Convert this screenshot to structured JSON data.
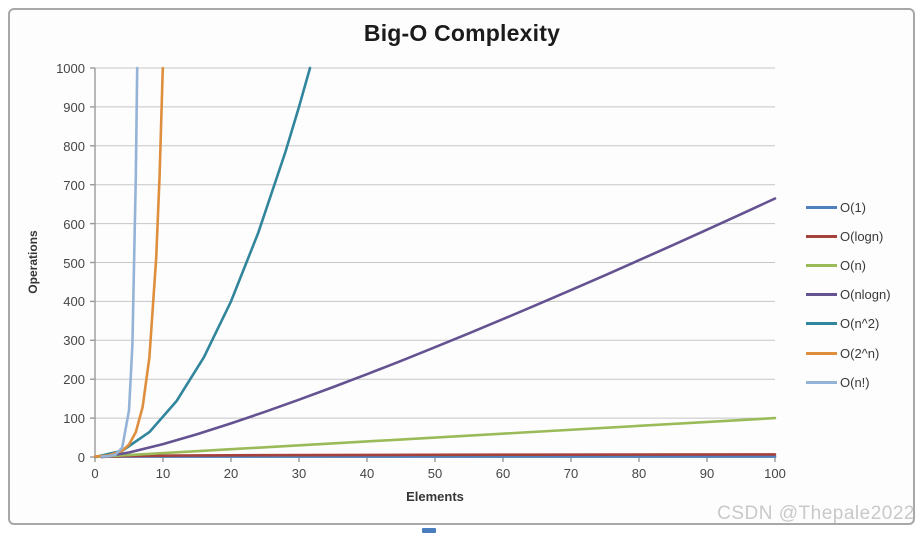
{
  "page": {
    "watermark": "CSDN @Thepale2022"
  },
  "colors": {
    "gridline": "#c6c6c6",
    "axis": "#9a9a9a",
    "tick": "#9a9a9a",
    "frame_border": "#a8a8a8",
    "title_text": "#1b1b1b",
    "watermark_text": "#c9c9c9",
    "bottom_artifact": "#4b7ebe"
  },
  "chart_data": {
    "type": "line",
    "title": "Big-O Complexity",
    "xlabel": "Elements",
    "ylabel": "Operations",
    "xlim": [
      0,
      100
    ],
    "ylim": [
      0,
      1000
    ],
    "x_ticks": [
      0,
      10,
      20,
      30,
      40,
      50,
      60,
      70,
      80,
      90,
      100
    ],
    "y_ticks": [
      0,
      100,
      200,
      300,
      400,
      500,
      600,
      700,
      800,
      900,
      1000
    ],
    "grid": "horizontal-only",
    "legend_position": "right",
    "series": [
      {
        "name": "O(1)",
        "color": "#4f81bd",
        "points": [
          [
            0,
            1
          ],
          [
            100,
            1
          ]
        ]
      },
      {
        "name": "O(logn)",
        "color": "#a6413c",
        "points": [
          [
            1,
            0
          ],
          [
            2,
            1
          ],
          [
            3,
            1.58
          ],
          [
            4,
            2
          ],
          [
            6,
            2.58
          ],
          [
            8,
            3
          ],
          [
            12,
            3.58
          ],
          [
            16,
            4
          ],
          [
            24,
            4.58
          ],
          [
            32,
            5
          ],
          [
            48,
            5.58
          ],
          [
            64,
            6
          ],
          [
            100,
            6.64
          ]
        ]
      },
      {
        "name": "O(n)",
        "color": "#9bbb59",
        "points": [
          [
            0,
            0
          ],
          [
            100,
            100
          ]
        ]
      },
      {
        "name": "O(nlogn)",
        "color": "#655291",
        "points": [
          [
            1,
            0
          ],
          [
            5,
            11.6
          ],
          [
            10,
            33.2
          ],
          [
            15,
            58.6
          ],
          [
            20,
            86.4
          ],
          [
            25,
            116.1
          ],
          [
            30,
            147.2
          ],
          [
            35,
            179.6
          ],
          [
            40,
            212.9
          ],
          [
            45,
            247.1
          ],
          [
            50,
            282.2
          ],
          [
            55,
            318
          ],
          [
            60,
            354.4
          ],
          [
            65,
            391.4
          ],
          [
            70,
            429
          ],
          [
            75,
            467.1
          ],
          [
            80,
            505.8
          ],
          [
            85,
            544.8
          ],
          [
            90,
            584.3
          ],
          [
            95,
            624.2
          ],
          [
            100,
            664.4
          ]
        ]
      },
      {
        "name": "O(n^2)",
        "color": "#31859c",
        "points": [
          [
            0,
            0
          ],
          [
            4,
            16
          ],
          [
            8,
            64
          ],
          [
            12,
            144
          ],
          [
            16,
            256
          ],
          [
            20,
            400
          ],
          [
            24,
            576
          ],
          [
            28,
            784
          ],
          [
            30,
            900
          ],
          [
            31.62,
            1000
          ]
        ]
      },
      {
        "name": "O(2^n)",
        "color": "#de8e3d",
        "points": [
          [
            0,
            1
          ],
          [
            2,
            4
          ],
          [
            4,
            16
          ],
          [
            5,
            32
          ],
          [
            6,
            64
          ],
          [
            7,
            128
          ],
          [
            8,
            256
          ],
          [
            9,
            512
          ],
          [
            9.5,
            724
          ],
          [
            9.97,
            1000
          ]
        ]
      },
      {
        "name": "O(n!)",
        "color": "#95b3d7",
        "points": [
          [
            1,
            1
          ],
          [
            2,
            2
          ],
          [
            3,
            6
          ],
          [
            4,
            24
          ],
          [
            5,
            120
          ],
          [
            5.5,
            288
          ],
          [
            6,
            720
          ],
          [
            6.2,
            1000
          ]
        ]
      }
    ]
  }
}
